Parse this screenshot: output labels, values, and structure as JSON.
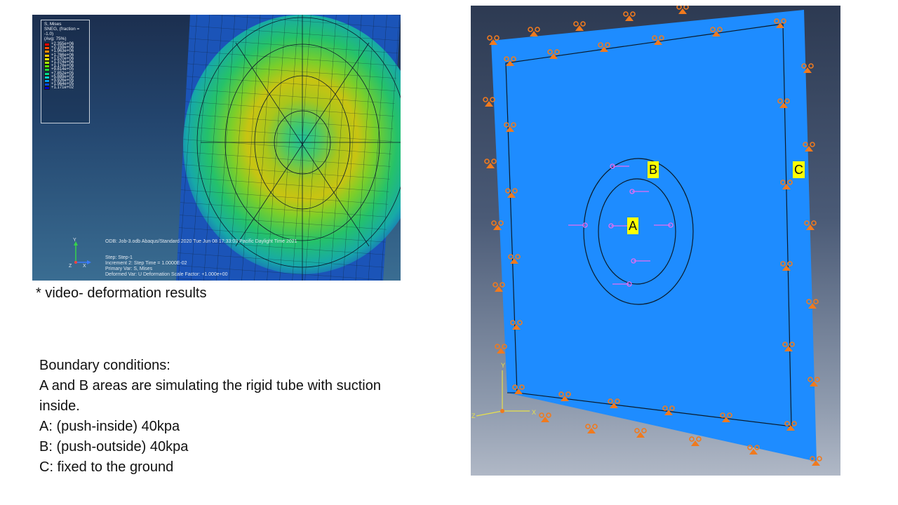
{
  "result_screenshot": {
    "legend": {
      "title_lines": [
        "S, Mises",
        "SNEG, (fraction = -1.0)",
        "(Avg: 75%)"
      ],
      "entries": [
        {
          "label": "+2.355e+06",
          "color": "#ff0000"
        },
        {
          "label": "+2.159e+06",
          "color": "#ff4a00"
        },
        {
          "label": "+1.963e+06",
          "color": "#ff8c00"
        },
        {
          "label": "+1.766e+06",
          "color": "#ffc800"
        },
        {
          "label": "+1.570e+06",
          "color": "#e5f000"
        },
        {
          "label": "+1.374e+06",
          "color": "#a8f000"
        },
        {
          "label": "+1.178e+06",
          "color": "#5ee600"
        },
        {
          "label": "+9.814e+05",
          "color": "#19dc3c"
        },
        {
          "label": "+7.852e+05",
          "color": "#00dc8c"
        },
        {
          "label": "+5.889e+05",
          "color": "#00d2d2"
        },
        {
          "label": "+3.926e+05",
          "color": "#009bf0"
        },
        {
          "label": "+1.964e+05",
          "color": "#0050f0"
        },
        {
          "label": "+1.171e+02",
          "color": "#0000c8"
        }
      ]
    },
    "odb_line": "ODB: Job-3.odb    Abaqus/Standard 2020    Tue Jun 08 17:33:03 Pacific Daylight Time 2021",
    "step_lines": [
      "Step: Step-1",
      "Increment     2: Step Time =    1.0000E-02",
      "Primary Var: S, Mises",
      "Deformed Var: U   Deformation Scale Factor: +1.000e+00"
    ],
    "axis_y": "Y",
    "axis_x": "X",
    "axis_z": "Z"
  },
  "caption": "* video- deformation results",
  "boundary": {
    "title": "Boundary conditions:",
    "lines": [
      "A and B areas are simulating the rigid tube with suction",
      "inside.",
      "A: (push-inside) 40kpa",
      "B: (push-outside) 40kpa",
      "C: fixed to the ground"
    ]
  },
  "model_screenshot": {
    "labels": {
      "a": "A",
      "b": "B",
      "c": "C"
    },
    "triad": {
      "y": "Y",
      "x": "X",
      "z": "Z"
    },
    "colors": {
      "plate": "#1e8cff",
      "bc_marker": "#f07a1e",
      "load_arrow": "#e76cf0",
      "edge": "#0a1a2a"
    }
  }
}
